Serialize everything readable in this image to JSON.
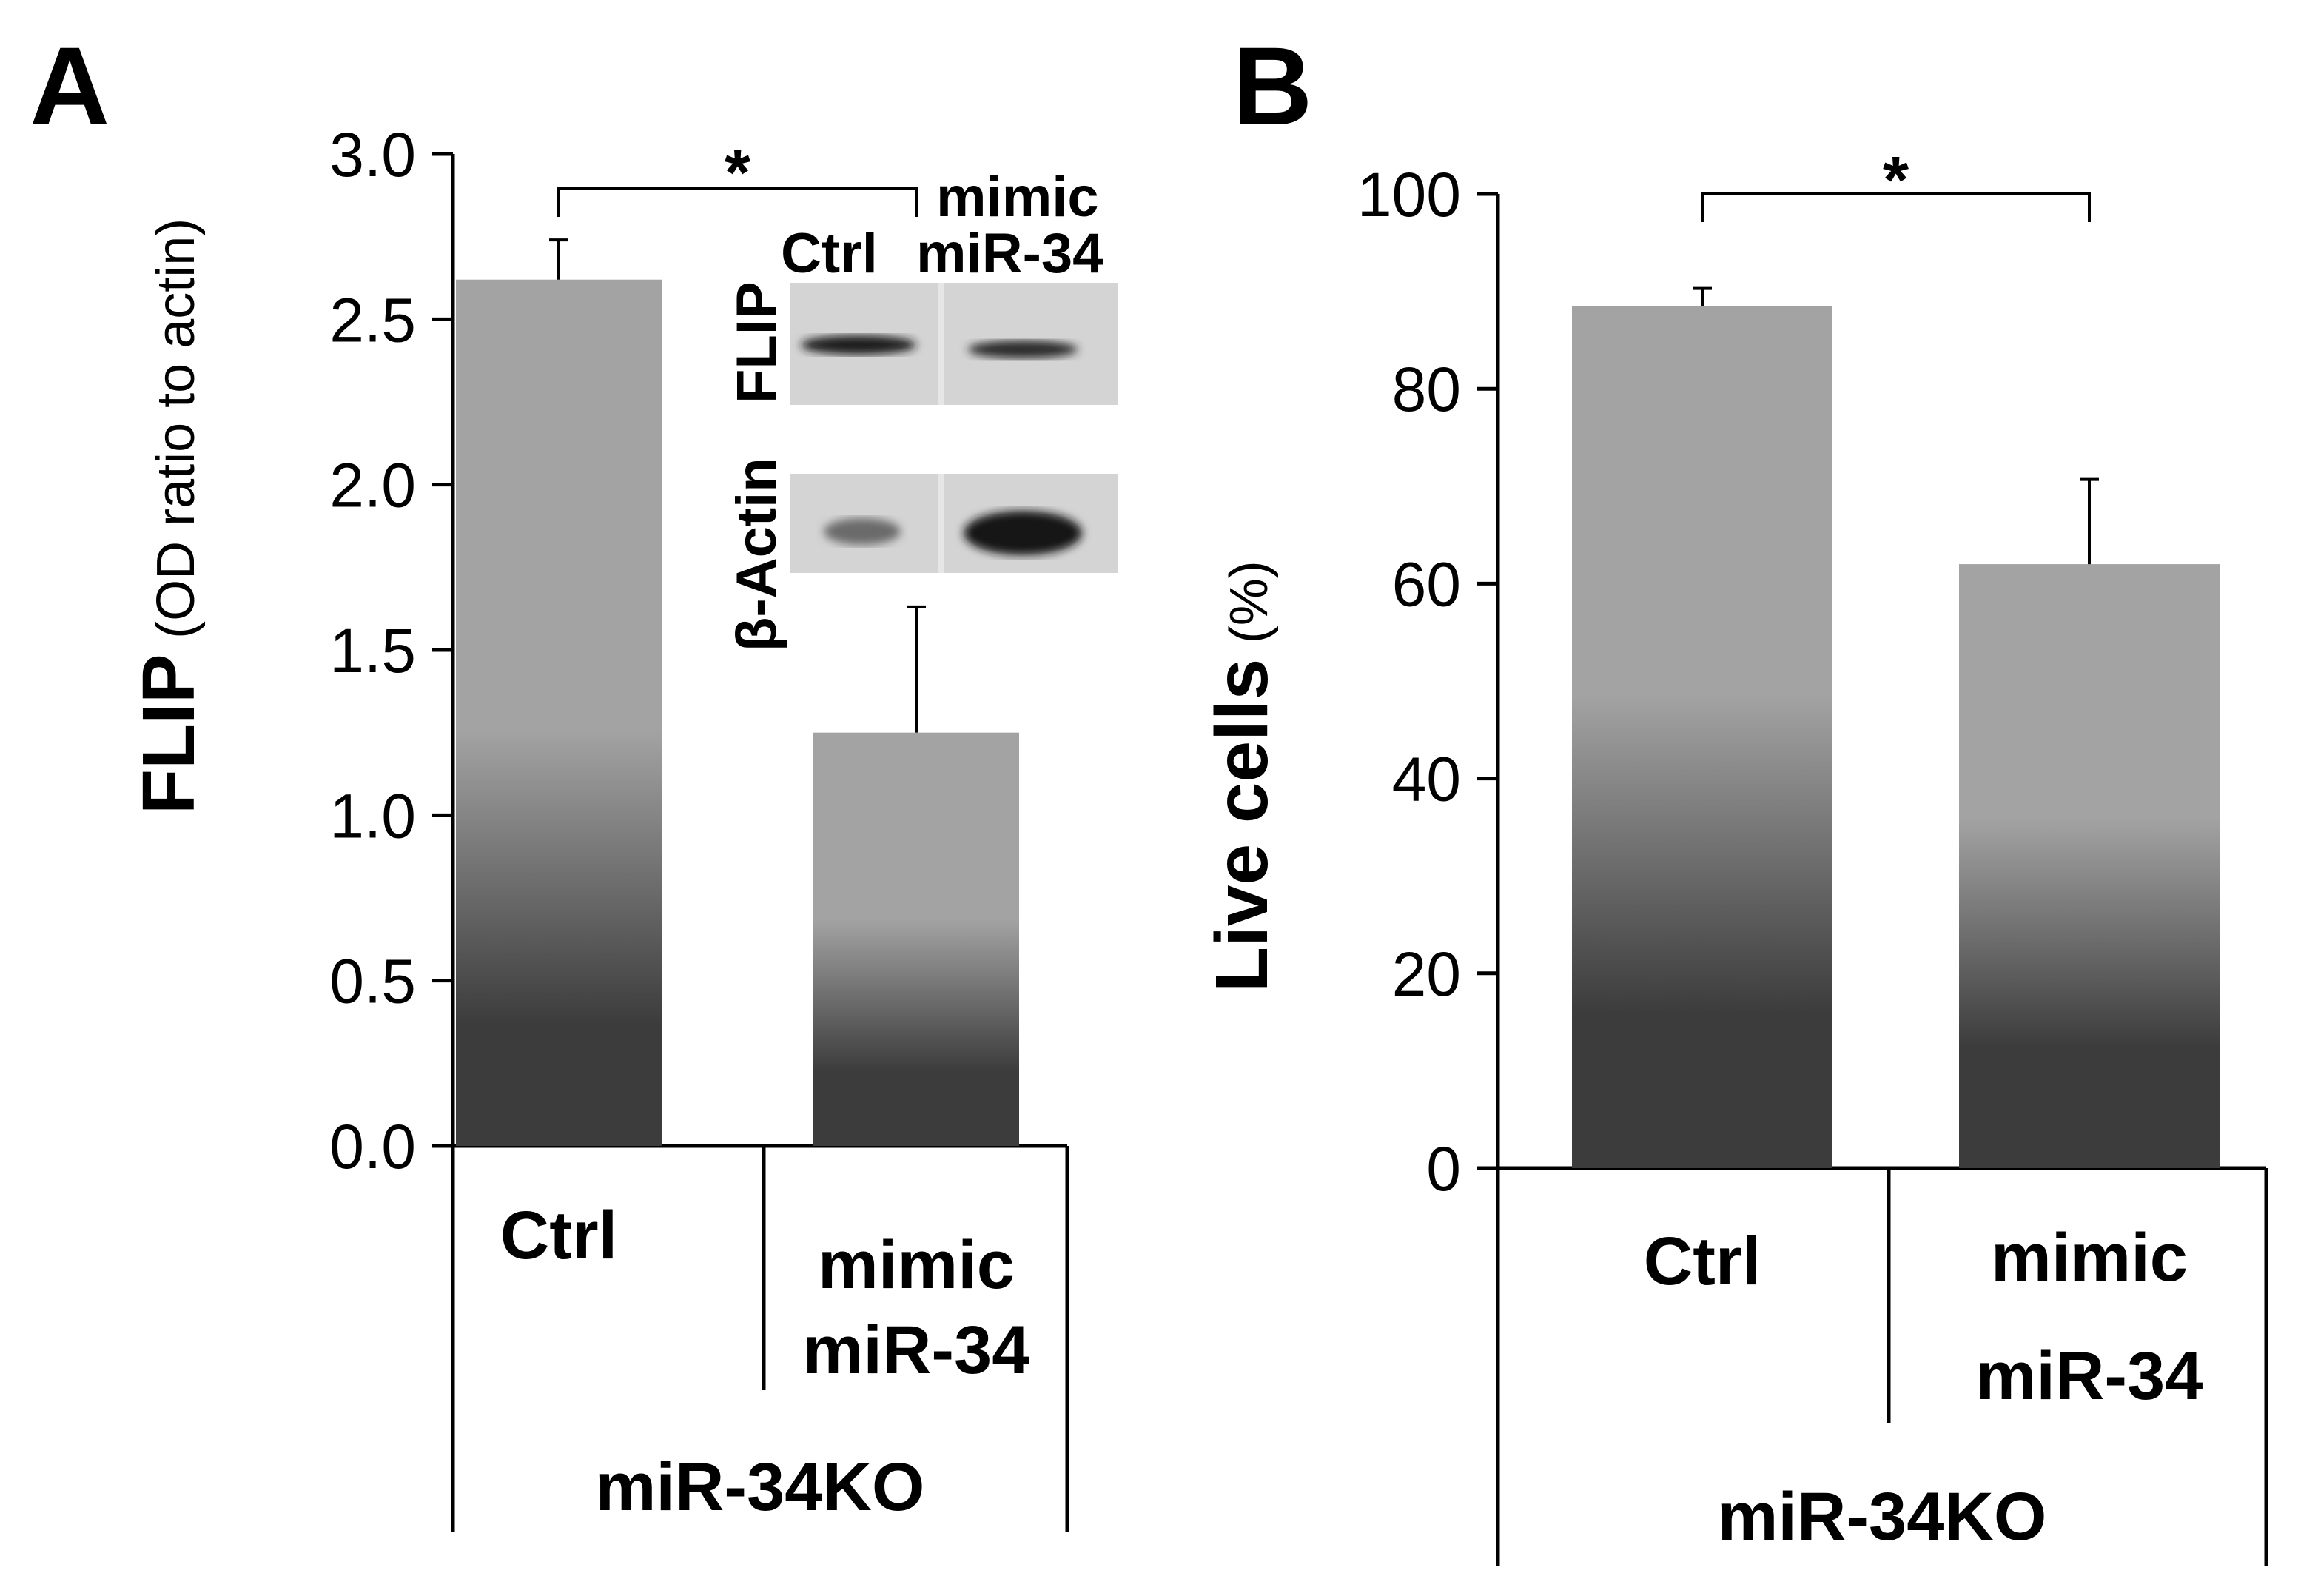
{
  "chart_data": [
    {
      "panel": "A",
      "type": "bar",
      "categories": [
        "Ctrl",
        "mimic miR-34"
      ],
      "category_lines": [
        [
          "Ctrl"
        ],
        [
          "mimic",
          "miR-34"
        ]
      ],
      "group_label": "miR-34KO",
      "values": [
        2.62,
        1.25
      ],
      "errors": [
        0.12,
        0.38
      ],
      "ylabel_main": "FLIP",
      "ylabel_sub": "(OD ratio to actin)",
      "ylim": [
        0,
        3
      ],
      "yticks": [
        "0.0",
        "0.5",
        "1.0",
        "1.5",
        "2.0",
        "2.5",
        "3.0"
      ],
      "significance": "*",
      "inset": {
        "column_labels": [
          [
            "Ctrl"
          ],
          [
            "mimic",
            "miR-34"
          ]
        ],
        "row_labels": [
          "FLIP",
          "β-Actin"
        ]
      }
    },
    {
      "panel": "B",
      "type": "bar",
      "categories": [
        "Ctrl",
        "mimic miR-34"
      ],
      "category_lines": [
        [
          "Ctrl"
        ],
        [
          "mimic",
          "miR-34"
        ]
      ],
      "group_label": "miR-34KO",
      "values": [
        88.5,
        62
      ],
      "errors": [
        1.8,
        8.7
      ],
      "ylabel_main": "Live cells",
      "ylabel_sub": "(%)",
      "ylim": [
        0,
        100
      ],
      "yticks": [
        "0",
        "20",
        "40",
        "60",
        "80",
        "100"
      ],
      "significance": "*"
    }
  ],
  "colors": {
    "bar_light": "#a3a3a3",
    "bar_dark": "#3c3c3c",
    "axis": "#000000",
    "blot_bg": "#d4d4d4",
    "band": "#1e1e1e"
  }
}
